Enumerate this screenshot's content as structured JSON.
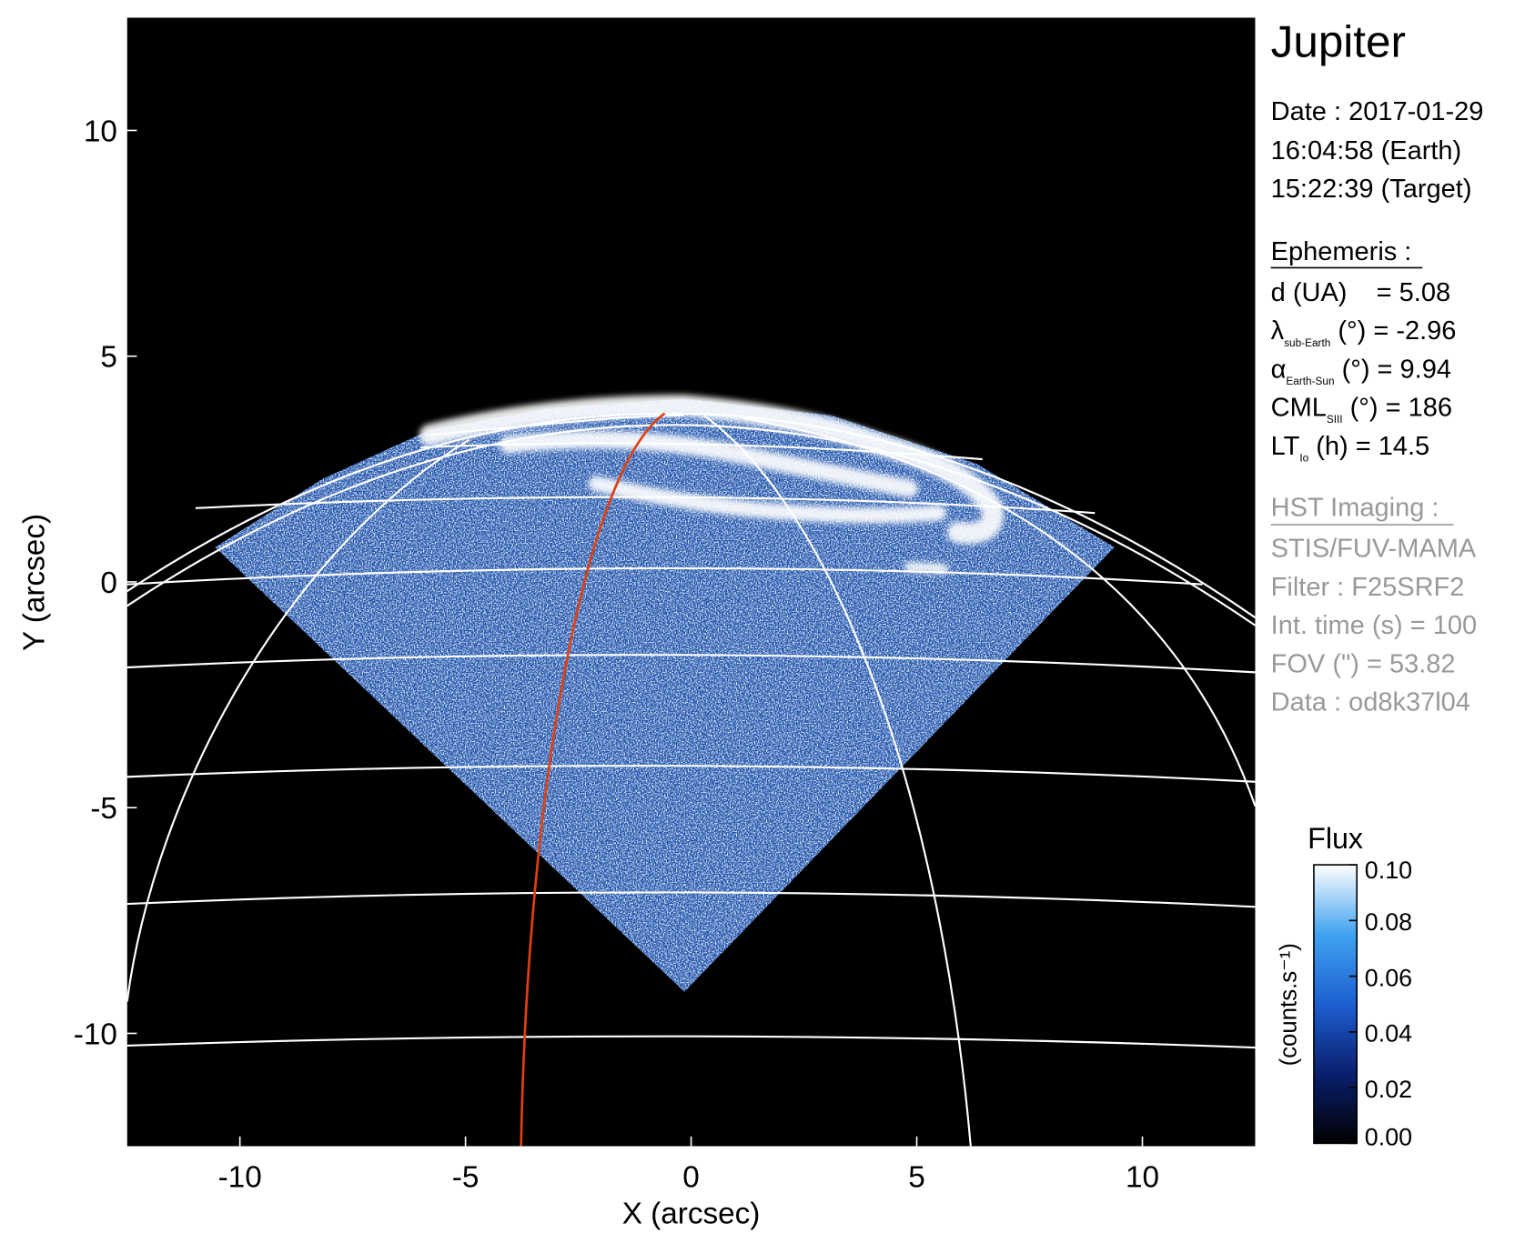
{
  "chart_data": {
    "type": "image",
    "title": "Jupiter",
    "xlabel": "X (arcsec)",
    "ylabel": "Y (arcsec)",
    "xlim": [
      -12.5,
      12.5
    ],
    "ylim": [
      -12.5,
      12.5
    ],
    "xticks": [
      -10,
      -5,
      0,
      5,
      10
    ],
    "yticks": [
      -10,
      -5,
      0,
      5,
      10
    ],
    "colorbar": {
      "label": "Flux",
      "unit": "(counts.s⁻¹)",
      "lim": [
        0,
        0.1
      ],
      "colors": [
        "#000000",
        "#0a1f6e",
        "#1d5fd0",
        "#3fa3f0",
        "#ffffff"
      ],
      "ticks": [
        {
          "value": 0,
          "label": "0.00"
        },
        {
          "value": 0.02,
          "label": "0.02"
        },
        {
          "value": 0.04,
          "label": "0.04"
        },
        {
          "value": 0.06,
          "label": "0.06"
        },
        {
          "value": 0.08,
          "label": "0.08"
        },
        {
          "value": 0.1,
          "label": "0.10"
        }
      ]
    },
    "info": {
      "date": "Date : 2017-01-29",
      "earth_time": "16:04:58 (Earth)",
      "target_time": "15:22:39 (Target)",
      "ephemeris": {
        "title": "Ephemeris :",
        "items": [
          {
            "text": "d (UA)    = 5.08"
          },
          {
            "text": "λ",
            "sub": "sub-Earth",
            "rest": " (°) = -2.96"
          },
          {
            "text": "α",
            "sub": "Earth-Sun",
            "rest": " (°) = 9.94"
          },
          {
            "text": "CML",
            "sub": "SIII",
            "rest": " (°) = 186"
          },
          {
            "text": "LT",
            "sub": "Io",
            "rest": " (h) = 14.5"
          }
        ]
      },
      "imaging": {
        "title": "HST Imaging :",
        "items": [
          "STIS/FUV-MAMA",
          "Filter : F25SRF2",
          "Int. time (s) = 100",
          "FOV (\") = 53.82",
          "Data : od8k37l04"
        ]
      }
    }
  }
}
